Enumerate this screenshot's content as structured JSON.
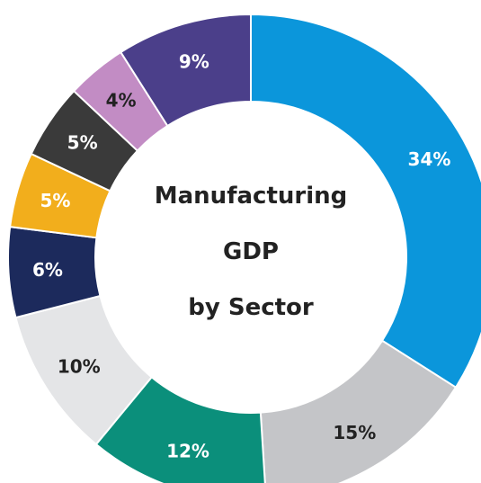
{
  "chart_data": {
    "type": "pie",
    "title_lines": [
      "Manufacturing",
      "GDP",
      "by Sector"
    ],
    "slices": [
      {
        "label": "34%",
        "value": 34,
        "color": "#0b96db",
        "label_color": "#ffffff"
      },
      {
        "label": "15%",
        "value": 15,
        "color": "#c4c5c8",
        "label_color": "#222222"
      },
      {
        "label": "12%",
        "value": 12,
        "color": "#0b8f7b",
        "label_color": "#ffffff"
      },
      {
        "label": "10%",
        "value": 10,
        "color": "#e4e5e7",
        "label_color": "#222222"
      },
      {
        "label": "6%",
        "value": 6,
        "color": "#1c2a5c",
        "label_color": "#ffffff"
      },
      {
        "label": "5%",
        "value": 5,
        "color": "#f2ae1c",
        "label_color": "#ffffff"
      },
      {
        "label": "5%",
        "value": 5,
        "color": "#3a3a3a",
        "label_color": "#ffffff"
      },
      {
        "label": "4%",
        "value": 4,
        "color": "#c28cc4",
        "label_color": "#222222"
      },
      {
        "label": "9%",
        "value": 9,
        "color": "#4b3f8a",
        "label_color": "#ffffff"
      }
    ]
  }
}
